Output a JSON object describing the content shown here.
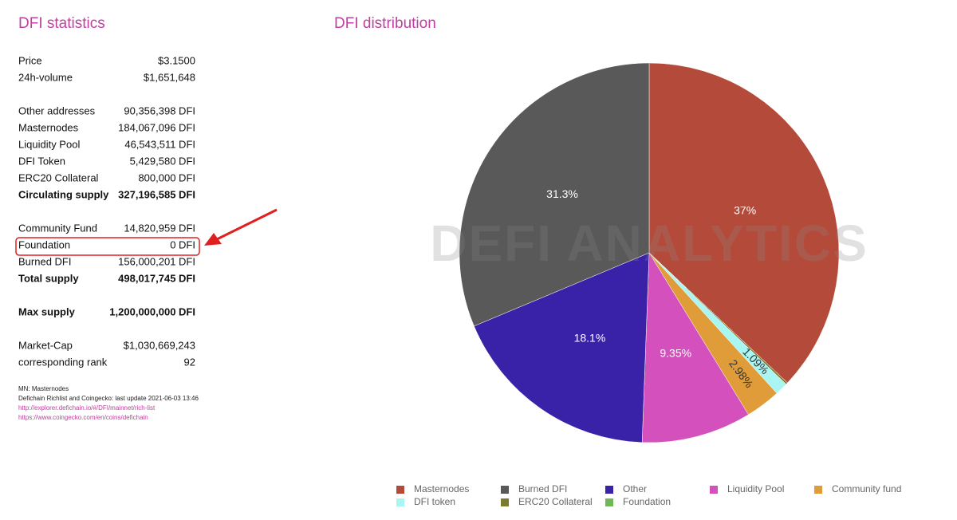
{
  "stats": {
    "title": "DFI statistics",
    "groups": [
      [
        {
          "label": "Price",
          "value": "$3.1500"
        },
        {
          "label": "24h-volume",
          "value": "$1,651,648"
        }
      ],
      [
        {
          "label": "Other addresses",
          "value": "90,356,398 DFI"
        },
        {
          "label": "Masternodes",
          "value": "184,067,096 DFI"
        },
        {
          "label": "Liquidity Pool",
          "value": "46,543,511 DFI"
        },
        {
          "label": "DFI Token",
          "value": "5,429,580 DFI"
        },
        {
          "label": "ERC20 Collateral",
          "value": "800,000 DFI"
        },
        {
          "label": "Circulating supply",
          "value": "327,196,585 DFI",
          "bold": true
        }
      ],
      [
        {
          "label": "Community Fund",
          "value": "14,820,959 DFI"
        },
        {
          "label": "Foundation",
          "value": "0 DFI"
        },
        {
          "label": "Burned DFI",
          "value": "156,000,201 DFI"
        },
        {
          "label": "Total supply",
          "value": "498,017,745 DFI",
          "bold": true
        }
      ],
      [
        {
          "label": "Max supply",
          "value": "1,200,000,000 DFI",
          "bold": true
        }
      ],
      [
        {
          "label": "Market-Cap",
          "value": "$1,030,669,243"
        },
        {
          "label": "corresponding rank",
          "value": "92"
        }
      ]
    ],
    "notes": [
      "MN: Masternodes",
      "Defichain Richlist and Coingecko: last update 2021-06-03 13:46"
    ],
    "links": [
      "http://explorer.defichain.io/#/DFI/mainnet/rich-list",
      "https://www.coingecko.com/en/coins/defichain"
    ]
  },
  "chart_data": {
    "type": "pie",
    "title": "DFI distribution",
    "watermark": "DEFI ANALYTICS",
    "categories": [
      "Masternodes",
      "Burned DFI",
      "Other",
      "Liquidity Pool",
      "Community fund",
      "DFI token",
      "ERC20 Collateral",
      "Foundation"
    ],
    "values": [
      37,
      31.3,
      18.1,
      9.35,
      2.98,
      1.09,
      0.16,
      0
    ],
    "value_labels": [
      "37%",
      "31.3%",
      "18.1%",
      "9.35%",
      "2.98%",
      "1.09%",
      null,
      null
    ],
    "colors": [
      "#b44b3a",
      "#595959",
      "#3a22a8",
      "#d450bd",
      "#e09c38",
      "#a8f5f2",
      "#7b7a2e",
      "#6fb85a"
    ],
    "legend": "bottom"
  }
}
